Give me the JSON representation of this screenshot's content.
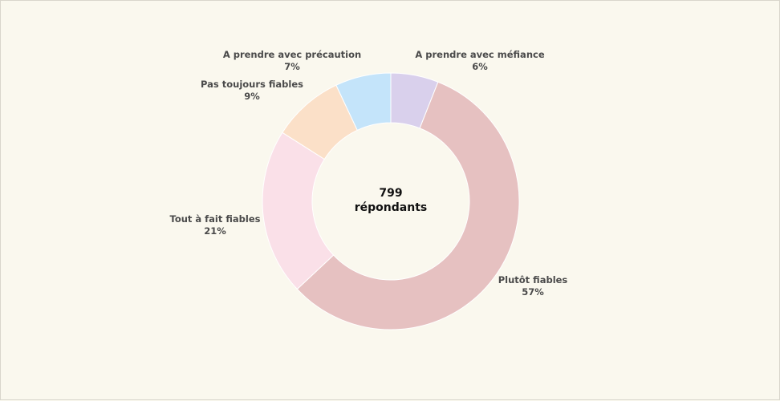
{
  "chart_data": {
    "type": "pie",
    "title": "",
    "center_label": {
      "line1": "799",
      "line2": "répondants"
    },
    "slices": [
      {
        "label": "A prendre avec méfiance",
        "percent_label": "6%",
        "value": 6,
        "color": "#d9d0ec"
      },
      {
        "label": "Plutôt fiables",
        "percent_label": "57%",
        "value": 57,
        "color": "#e6c1c1"
      },
      {
        "label": "Tout à fait fiables",
        "percent_label": "21%",
        "value": 21,
        "color": "#fae0e8"
      },
      {
        "label": "Pas toujours fiables",
        "percent_label": "9%",
        "value": 9,
        "color": "#fbe0c8"
      },
      {
        "label": "A prendre avec précaution",
        "percent_label": "7%",
        "value": 7,
        "color": "#c4e4fa"
      }
    ]
  }
}
